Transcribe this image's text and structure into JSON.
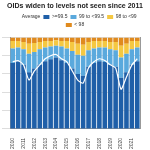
{
  "chart_data": {
    "type": "bar",
    "title": "OIDs widen to levels not seen since 2011",
    "stacked": true,
    "grid": true,
    "legend": "top",
    "tick_labels": "x",
    "categories": [
      "2010",
      null,
      "2011",
      null,
      "2012",
      null,
      "2013",
      null,
      "2014",
      null,
      "2015",
      null,
      "2016",
      null,
      "2017",
      null,
      "2018",
      null,
      "2019",
      null,
      "2020",
      null,
      "2021",
      null
    ],
    "ylim": [
      0,
      100
    ],
    "yticks": [
      0,
      20,
      40,
      60,
      80,
      100
    ],
    "y2lim": [
      98.5,
      100
    ],
    "y2ticks": [
      98.5,
      99,
      99.5,
      100
    ],
    "series": [
      {
        "name": ">=99.5",
        "color": "#1f5fa8",
        "type": "bar",
        "values": [
          72,
          74,
          70,
          62,
          66,
          70,
          74,
          76,
          78,
          75,
          72,
          66,
          60,
          58,
          68,
          72,
          74,
          73,
          70,
          68,
          56,
          62,
          70,
          74
        ]
      },
      {
        "name": "99 to <99.5",
        "color": "#5aa9dd",
        "type": "bar",
        "values": [
          16,
          15,
          17,
          20,
          18,
          17,
          15,
          14,
          13,
          15,
          16,
          19,
          21,
          22,
          18,
          16,
          15,
          16,
          17,
          18,
          22,
          20,
          17,
          15
        ]
      },
      {
        "name": "98 to <99",
        "color": "#f5c842",
        "type": "bar",
        "values": [
          8,
          7,
          8,
          11,
          10,
          8,
          7,
          6,
          6,
          6,
          8,
          10,
          12,
          12,
          9,
          8,
          7,
          7,
          8,
          9,
          13,
          11,
          9,
          7
        ]
      },
      {
        "name": "< 98",
        "color": "#e08a1e",
        "type": "bar",
        "values": [
          4,
          4,
          5,
          7,
          6,
          5,
          4,
          4,
          3,
          4,
          4,
          5,
          7,
          8,
          5,
          4,
          4,
          4,
          5,
          5,
          9,
          7,
          4,
          4
        ]
      },
      {
        "name": "Average",
        "color": "#ffffff",
        "type": "line",
        "axis": "y2",
        "values": [
          99.6,
          99.62,
          99.55,
          99.3,
          99.45,
          99.55,
          99.65,
          99.7,
          99.72,
          99.65,
          99.6,
          99.45,
          99.3,
          99.25,
          99.5,
          99.6,
          99.65,
          99.62,
          99.55,
          99.5,
          99.15,
          99.35,
          99.55,
          99.65
        ]
      }
    ]
  }
}
